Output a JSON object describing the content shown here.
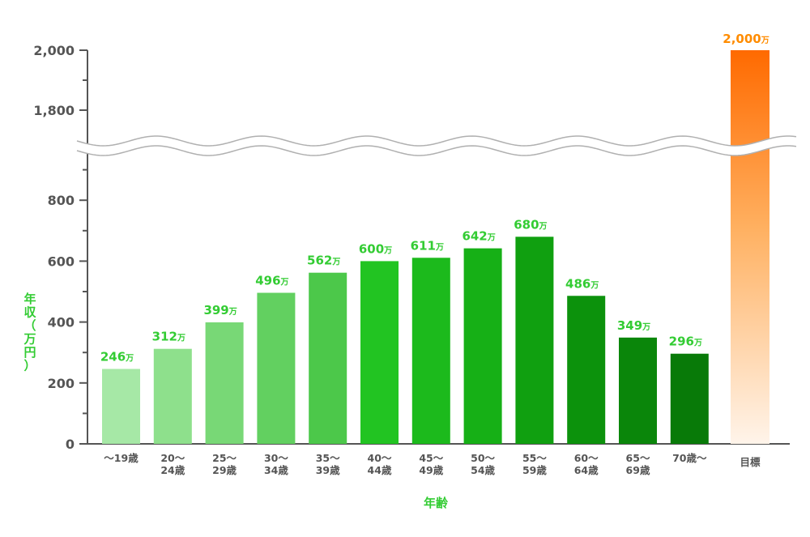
{
  "chart_data": {
    "type": "bar",
    "xlabel": "年齢",
    "ylabel_chars": [
      "年",
      "収",
      "（",
      "万",
      "円",
      "）"
    ],
    "unit_suffix": "万",
    "yticks_lower": [
      "0",
      "200",
      "400",
      "600",
      "800"
    ],
    "yticks_upper": [
      "1,800",
      "2,000"
    ],
    "ylim_lower": [
      0,
      900
    ],
    "ylim_upper": [
      1700,
      2000
    ],
    "axis_break": true,
    "categories": [
      [
        "～19歳"
      ],
      [
        "20～",
        "24歳"
      ],
      [
        "25～",
        "29歳"
      ],
      [
        "30～",
        "34歳"
      ],
      [
        "35～",
        "39歳"
      ],
      [
        "40～",
        "44歳"
      ],
      [
        "45～",
        "49歳"
      ],
      [
        "50～",
        "54歳"
      ],
      [
        "55～",
        "59歳"
      ],
      [
        "60～",
        "64歳"
      ],
      [
        "65～",
        "69歳"
      ],
      [
        "70歳～"
      ]
    ],
    "values": [
      246,
      312,
      399,
      496,
      562,
      600,
      611,
      642,
      680,
      486,
      349,
      296
    ],
    "value_labels": [
      "246",
      "312",
      "399",
      "496",
      "562",
      "600",
      "611",
      "642",
      "680",
      "486",
      "349",
      "296"
    ],
    "bar_colors": [
      "#a6e8a6",
      "#8ee08c",
      "#78d876",
      "#62d060",
      "#4cc84a",
      "#22c422",
      "#1cba1c",
      "#16b016",
      "#10a010",
      "#0c920c",
      "#0a860a",
      "#087a08"
    ],
    "target": {
      "label": "目標",
      "value": 2000,
      "value_label": "2,000"
    },
    "colors": {
      "axis": "#555555",
      "green_text": "#33cc33",
      "orange_text": "#ff8c00",
      "target_top": "#ff6a00",
      "target_mid": "#ffb060",
      "target_bottom": "#fff4ea"
    }
  }
}
